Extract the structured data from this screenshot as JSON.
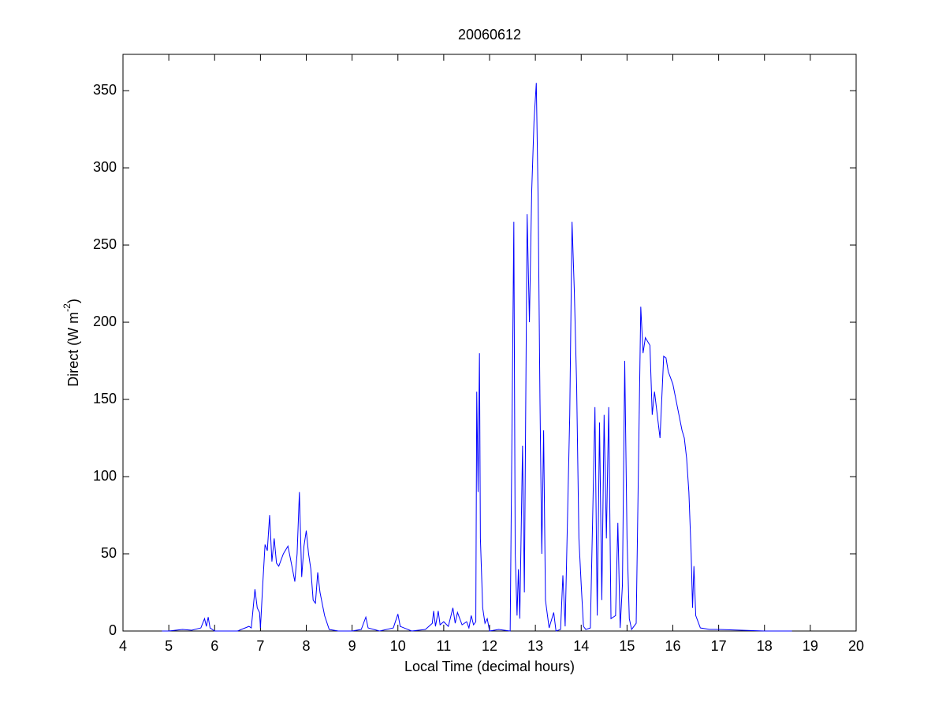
{
  "chart_data": {
    "type": "line",
    "title": "20060612",
    "xlabel": "Local Time (decimal hours)",
    "ylabel": {
      "text": "Direct (W m",
      "superscript": "-2",
      "suffix": ")"
    },
    "xlim": [
      4,
      20
    ],
    "xticks": [
      4,
      5,
      6,
      7,
      8,
      9,
      10,
      11,
      12,
      13,
      14,
      15,
      16,
      17,
      18,
      19,
      20
    ],
    "ylim": [
      0,
      373.5
    ],
    "yticks": [
      0,
      50,
      100,
      150,
      200,
      250,
      300,
      350
    ],
    "grid": false,
    "series": [
      {
        "color": "#0000ff",
        "x": [
          4.85,
          5.0,
          5.3,
          5.5,
          5.7,
          5.78,
          5.82,
          5.86,
          5.9,
          6.0,
          6.5,
          6.75,
          6.8,
          6.88,
          6.93,
          6.98,
          7.0,
          7.05,
          7.1,
          7.15,
          7.2,
          7.25,
          7.3,
          7.35,
          7.4,
          7.5,
          7.6,
          7.7,
          7.75,
          7.8,
          7.85,
          7.9,
          7.95,
          8.0,
          8.05,
          8.1,
          8.15,
          8.2,
          8.25,
          8.3,
          8.4,
          8.5,
          8.7,
          9.0,
          9.2,
          9.3,
          9.35,
          9.6,
          9.9,
          10.0,
          10.05,
          10.3,
          10.6,
          10.75,
          10.78,
          10.82,
          10.88,
          10.92,
          11.0,
          11.1,
          11.2,
          11.25,
          11.3,
          11.4,
          11.5,
          11.55,
          11.6,
          11.65,
          11.7,
          11.72,
          11.75,
          11.78,
          11.8,
          11.85,
          11.9,
          11.95,
          12.0,
          12.2,
          12.45,
          12.5,
          12.53,
          12.56,
          12.6,
          12.63,
          12.66,
          12.72,
          12.76,
          12.82,
          12.87,
          12.92,
          12.97,
          13.02,
          13.06,
          13.1,
          13.14,
          13.18,
          13.22,
          13.3,
          13.4,
          13.45,
          13.55,
          13.6,
          13.65,
          13.75,
          13.8,
          13.85,
          13.9,
          13.95,
          14.0,
          14.05,
          14.1,
          14.2,
          14.3,
          14.35,
          14.4,
          14.45,
          14.5,
          14.55,
          14.6,
          14.65,
          14.75,
          14.8,
          14.85,
          14.9,
          14.95,
          15.0,
          15.05,
          15.1,
          15.2,
          15.3,
          15.35,
          15.4,
          15.5,
          15.55,
          15.6,
          15.7,
          15.72,
          15.8,
          15.85,
          15.9,
          16.0,
          16.1,
          16.2,
          16.25,
          16.3,
          16.35,
          16.4,
          16.43,
          16.46,
          16.5,
          16.6,
          16.8,
          17.0,
          17.5,
          18.0,
          18.6
        ],
        "values": [
          0,
          0,
          1,
          0.5,
          2,
          8,
          3,
          9,
          2,
          0,
          0,
          3,
          2,
          27,
          15,
          12,
          2,
          30,
          56,
          52,
          75,
          45,
          60,
          44,
          42,
          50,
          55,
          40,
          32,
          50,
          90,
          35,
          55,
          65,
          50,
          40,
          20,
          18,
          38,
          25,
          10,
          1,
          0,
          0,
          1,
          9,
          2,
          0,
          2,
          11,
          3,
          0,
          1,
          5,
          13,
          3,
          13,
          4,
          6,
          3,
          15,
          5,
          12,
          4,
          6,
          2,
          10,
          4,
          6,
          155,
          90,
          180,
          60,
          15,
          5,
          8,
          0,
          1,
          0,
          165,
          265,
          50,
          10,
          40,
          8,
          120,
          25,
          270,
          200,
          285,
          330,
          355,
          280,
          150,
          50,
          130,
          20,
          2,
          12,
          0,
          1,
          36,
          3,
          140,
          265,
          220,
          160,
          60,
          30,
          3,
          1,
          2,
          145,
          10,
          135,
          20,
          140,
          60,
          145,
          8,
          10,
          70,
          2,
          30,
          175,
          60,
          8,
          1,
          5,
          210,
          180,
          190,
          185,
          140,
          155,
          130,
          125,
          178,
          177,
          168,
          160,
          145,
          130,
          125,
          112,
          90,
          50,
          15,
          42,
          10,
          2,
          1,
          1,
          0.5,
          0,
          0
        ]
      }
    ]
  }
}
